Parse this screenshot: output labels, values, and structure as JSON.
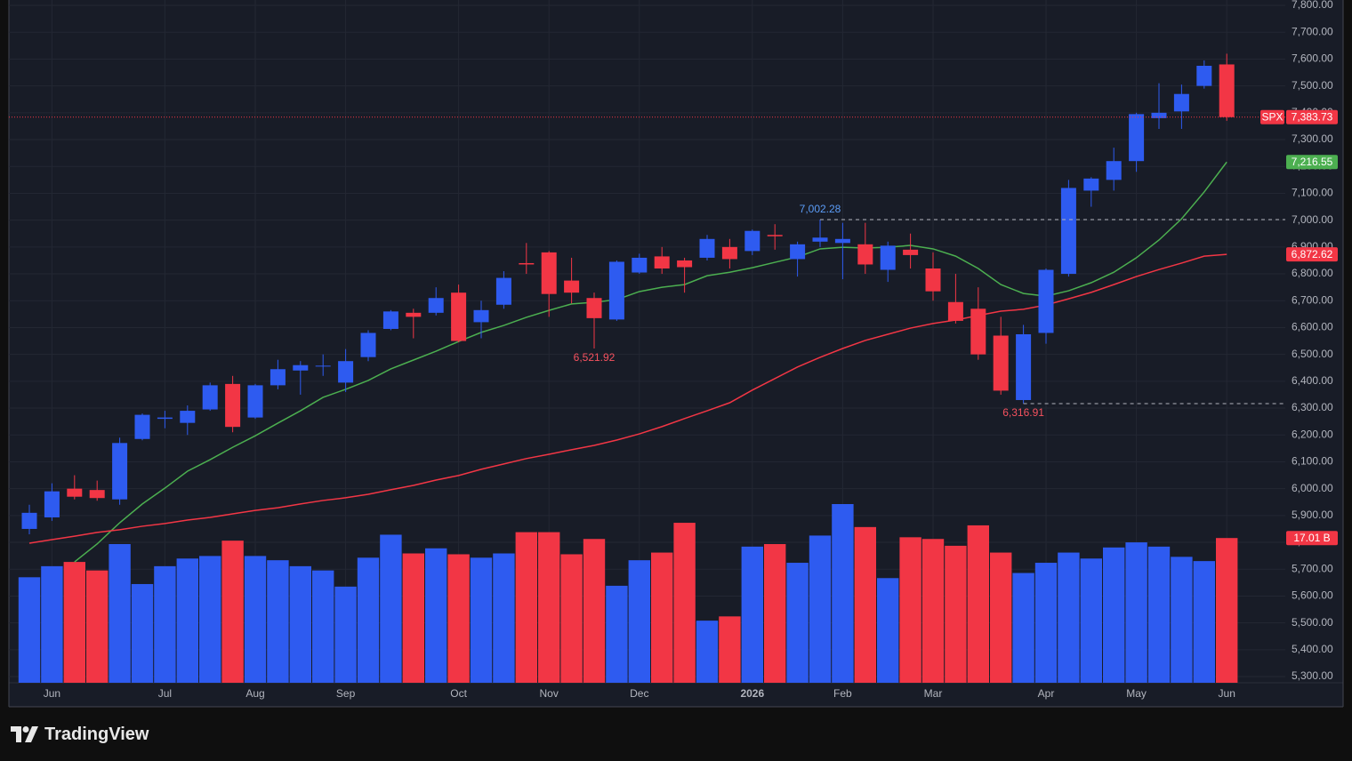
{
  "brand": "TradingView",
  "chart_data": {
    "type": "candlestick",
    "symbol": "SPX",
    "price_label": "7,383.73",
    "up_color": "#2e5bf0",
    "down_color": "#f23645",
    "grid": true,
    "categories": [
      null,
      "Jun",
      null,
      null,
      null,
      null,
      "Jul",
      null,
      null,
      null,
      "Aug",
      null,
      null,
      null,
      "Sep",
      null,
      null,
      null,
      null,
      "Oct",
      null,
      null,
      null,
      "Nov",
      null,
      null,
      null,
      "Dec",
      null,
      null,
      null,
      null,
      "2026",
      null,
      null,
      null,
      "Feb",
      null,
      null,
      null,
      "Mar",
      null,
      null,
      null,
      null,
      "Apr",
      null,
      null,
      null,
      "May",
      null,
      null,
      null,
      "Jun"
    ],
    "open": [
      5850,
      5893,
      6000,
      5995,
      5960,
      6185,
      6260,
      6245,
      6295,
      6390,
      6265,
      6385,
      6440,
      6455,
      6395,
      6490,
      6595,
      6655,
      6655,
      6730,
      6620,
      6685,
      6840,
      6880,
      6775,
      6710,
      6630,
      6805,
      6865,
      6850,
      6860,
      6900,
      6885,
      6945,
      6855,
      6920,
      6915,
      6910,
      6815,
      6890,
      6820,
      6695,
      6670,
      6570,
      6330,
      6580,
      6800,
      7110,
      7150,
      7220,
      7380,
      7405,
      7500,
      7580
    ],
    "high": [
      5940,
      6020,
      6050,
      6030,
      6190,
      6280,
      6290,
      6310,
      6395,
      6420,
      6390,
      6480,
      6475,
      6500,
      6520,
      6590,
      6665,
      6670,
      6750,
      6760,
      6700,
      6810,
      6915,
      6885,
      6860,
      6730,
      6850,
      6875,
      6900,
      6860,
      6945,
      6930,
      6965,
      6985,
      6920,
      7002.28,
      6990,
      6990,
      6920,
      6950,
      6880,
      6800,
      6750,
      6640,
      6610,
      6820,
      7150,
      7160,
      7270,
      7400,
      7510,
      7505,
      7595,
      7620
    ],
    "low": [
      5830,
      5880,
      5960,
      5955,
      5940,
      6180,
      6225,
      6200,
      6290,
      6210,
      6260,
      6370,
      6350,
      6420,
      6360,
      6475,
      6590,
      6560,
      6645,
      6545,
      6560,
      6670,
      6800,
      6640,
      6690,
      6521.92,
      6625,
      6800,
      6800,
      6730,
      6850,
      6820,
      6870,
      6890,
      6790,
      6900,
      6780,
      6800,
      6770,
      6820,
      6700,
      6615,
      6480,
      6350,
      6316.91,
      6540,
      6790,
      7050,
      7110,
      7180,
      7340,
      7340,
      7490,
      7370
    ],
    "close": [
      5910,
      5990,
      5970,
      5965,
      6170,
      6275,
      6265,
      6290,
      6385,
      6230,
      6385,
      6445,
      6460,
      6458,
      6475,
      6580,
      6660,
      6640,
      6710,
      6550,
      6665,
      6785,
      6835,
      6725,
      6730,
      6635,
      6845,
      6860,
      6820,
      6825,
      6930,
      6855,
      6960,
      6940,
      6910,
      6935,
      6930,
      6835,
      6905,
      6870,
      6735,
      6625,
      6500,
      6365,
      6575,
      6815,
      7120,
      7155,
      7220,
      7395,
      7400,
      7470,
      7575,
      7383.73
    ],
    "volume": {
      "values": [
        12.4,
        13.7,
        14.2,
        13.2,
        16.3,
        11.6,
        13.7,
        14.6,
        14.9,
        16.7,
        14.9,
        14.4,
        13.7,
        13.2,
        11.3,
        14.7,
        17.4,
        15.2,
        15.8,
        15.1,
        14.7,
        15.2,
        17.7,
        17.7,
        15.1,
        16.9,
        11.4,
        14.4,
        15.3,
        18.8,
        7.3,
        7.8,
        16.0,
        16.3,
        14.1,
        17.3,
        21.0,
        18.3,
        12.3,
        17.1,
        16.9,
        16.1,
        18.5,
        15.3,
        12.9,
        14.1,
        15.3,
        14.6,
        15.9,
        16.5,
        16.0,
        14.8,
        14.3,
        17.01
      ],
      "last_label": "17.01 B"
    },
    "lines": [
      {
        "color": "#4caf50",
        "last_label": "7,216.55",
        "values": [
          null,
          null,
          5727,
          5794,
          5873,
          5943,
          6002,
          6065,
          6108,
          6154,
          6197,
          6244,
          6290,
          6340,
          6370,
          6403,
          6446,
          6479,
          6512,
          6548,
          6582,
          6608,
          6638,
          6664,
          6688,
          6694,
          6704,
          6734,
          6750,
          6760,
          6793,
          6806,
          6823,
          6843,
          6863,
          6893,
          6899,
          6896,
          6899,
          6906,
          6893,
          6866,
          6820,
          6760,
          6727,
          6717,
          6737,
          6767,
          6806,
          6860,
          6926,
          7005,
          7105,
          7216.55
        ]
      },
      {
        "color": "#f23645",
        "last_label": "6,872.62",
        "values": [
          5797,
          5810,
          5823,
          5837,
          5847,
          5860,
          5870,
          5883,
          5893,
          5906,
          5919,
          5929,
          5943,
          5956,
          5966,
          5979,
          5996,
          6012,
          6032,
          6049,
          6072,
          6092,
          6112,
          6128,
          6145,
          6161,
          6181,
          6204,
          6231,
          6261,
          6290,
          6320,
          6367,
          6410,
          6453,
          6489,
          6522,
          6552,
          6575,
          6598,
          6615,
          6628,
          6645,
          6661,
          6668,
          6684,
          6707,
          6731,
          6760,
          6790,
          6816,
          6840,
          6866,
          6872.62
        ]
      }
    ],
    "annotations": [
      {
        "label": "7,002.28",
        "value": 7002.28,
        "kind": "high",
        "color": "#5b9cf6",
        "line": true
      },
      {
        "label": "6,521.92",
        "value": 6521.92,
        "kind": "low",
        "color": "#f7525f",
        "line": false
      },
      {
        "label": "6,316.91",
        "value": 6316.91,
        "kind": "low",
        "color": "#f7525f",
        "line": true
      }
    ],
    "ylim": [
      5277,
      7820
    ],
    "yticks": [
      {
        "value": 5300,
        "label": "5,300.00"
      },
      {
        "value": 5400,
        "label": "5,400.00"
      },
      {
        "value": 5500,
        "label": "5,500.00"
      },
      {
        "value": 5600,
        "label": "5,600.00"
      },
      {
        "value": 5700,
        "label": "5,700.00"
      },
      {
        "value": 5800,
        "label": "5,800.00"
      },
      {
        "value": 5900,
        "label": "5,900.00"
      },
      {
        "value": 6000,
        "label": "6,000.00"
      },
      {
        "value": 6100,
        "label": "6,100.00"
      },
      {
        "value": 6200,
        "label": "6,200.00"
      },
      {
        "value": 6300,
        "label": "6,300.00"
      },
      {
        "value": 6400,
        "label": "6,400.00"
      },
      {
        "value": 6500,
        "label": "6,500.00"
      },
      {
        "value": 6600,
        "label": "6,600.00"
      },
      {
        "value": 6700,
        "label": "6,700.00"
      },
      {
        "value": 6800,
        "label": "6,800.00"
      },
      {
        "value": 6900,
        "label": "6,900.00"
      },
      {
        "value": 7000,
        "label": "7,000.00"
      },
      {
        "value": 7100,
        "label": "7,100.00"
      },
      {
        "value": 7200,
        "label": "7,200.00"
      },
      {
        "value": 7300,
        "label": "7,300.00"
      },
      {
        "value": 7400,
        "label": "7,400.00"
      },
      {
        "value": 7500,
        "label": "7,500.00"
      },
      {
        "value": 7600,
        "label": "7,600.00"
      },
      {
        "value": 7700,
        "label": "7,700.00"
      },
      {
        "value": 7800,
        "label": "7,800.00"
      }
    ]
  }
}
